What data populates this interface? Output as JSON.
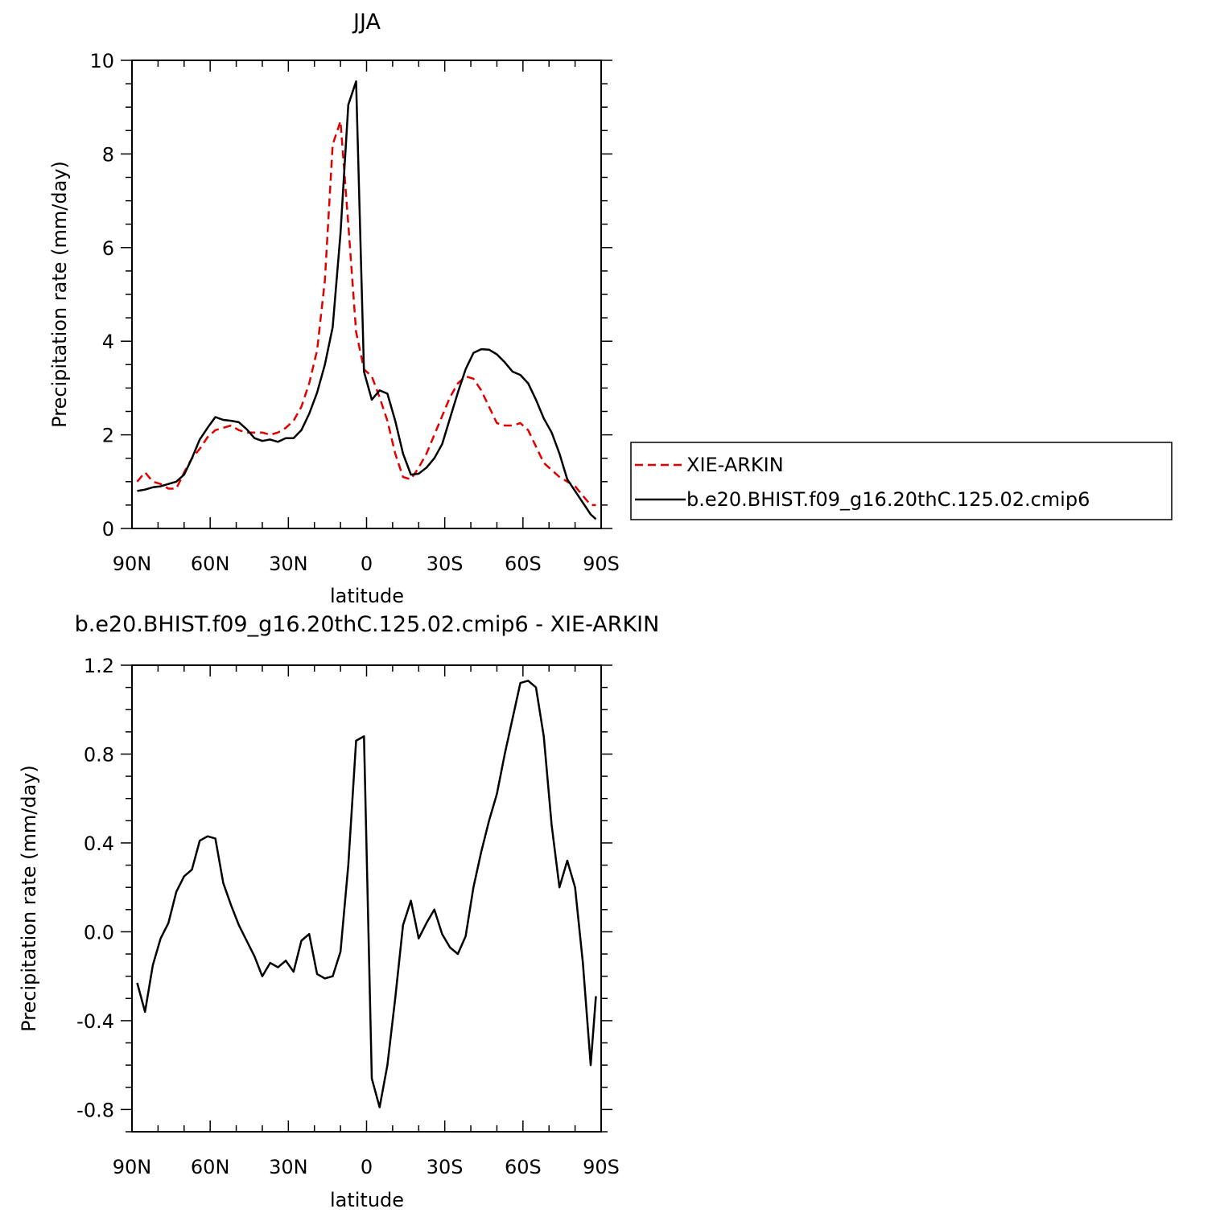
{
  "chart_data": [
    {
      "type": "line",
      "title": "JJA",
      "xlabel": "latitude",
      "ylabel": "Precipitation rate (mm/day)",
      "xlim": [
        90,
        -90
      ],
      "ylim": [
        0,
        10
      ],
      "xticks": [
        {
          "value": 90,
          "label": "90N"
        },
        {
          "value": 60,
          "label": "60N"
        },
        {
          "value": 30,
          "label": "30N"
        },
        {
          "value": 0,
          "label": "0"
        },
        {
          "value": -30,
          "label": "30S"
        },
        {
          "value": -60,
          "label": "60S"
        },
        {
          "value": -90,
          "label": "90S"
        }
      ],
      "yticks": [
        0,
        2,
        4,
        6,
        8,
        10
      ],
      "legend_position": "right",
      "series": [
        {
          "name": "XIE-ARKIN",
          "color": "#e00000",
          "dash": "dashed",
          "x": [
            88,
            85,
            82,
            79,
            76,
            73,
            70,
            67,
            64,
            61,
            58,
            55,
            52,
            49,
            46,
            43,
            40,
            37,
            34,
            31,
            28,
            25,
            22,
            19,
            16,
            13,
            10,
            7,
            4,
            1,
            -2,
            -5,
            -8,
            -11,
            -14,
            -17,
            -20,
            -23,
            -26,
            -29,
            -32,
            -35,
            -38,
            -41,
            -44,
            -47,
            -50,
            -53,
            -56,
            -59,
            -62,
            -65,
            -68,
            -71,
            -74,
            -77,
            -80,
            -83,
            -86,
            -88
          ],
          "y": [
            1.0,
            1.2,
            1.0,
            0.95,
            0.85,
            0.85,
            1.2,
            1.5,
            1.7,
            1.95,
            2.1,
            2.15,
            2.2,
            2.1,
            2.05,
            2.05,
            2.05,
            2.0,
            2.05,
            2.15,
            2.3,
            2.6,
            3.1,
            3.8,
            5.3,
            8.2,
            8.7,
            6.5,
            4.2,
            3.4,
            3.25,
            2.8,
            2.3,
            1.6,
            1.1,
            1.05,
            1.3,
            1.6,
            2.0,
            2.4,
            2.8,
            3.1,
            3.25,
            3.2,
            2.95,
            2.6,
            2.25,
            2.2,
            2.2,
            2.25,
            2.1,
            1.75,
            1.4,
            1.25,
            1.1,
            1.0,
            0.9,
            0.7,
            0.5,
            0.5
          ]
        },
        {
          "name": "b.e20.BHIST.f09_g16.20thC.125.02.cmip6",
          "color": "#000000",
          "dash": "solid",
          "x": [
            88,
            85,
            82,
            79,
            76,
            73,
            70,
            67,
            64,
            61,
            58,
            55,
            52,
            49,
            46,
            43,
            40,
            37,
            34,
            31,
            28,
            25,
            22,
            19,
            16,
            13,
            10,
            7,
            4,
            1,
            -2,
            -5,
            -8,
            -11,
            -14,
            -17,
            -20,
            -23,
            -26,
            -29,
            -32,
            -35,
            -38,
            -41,
            -44,
            -47,
            -50,
            -53,
            -56,
            -59,
            -62,
            -65,
            -68,
            -71,
            -74,
            -77,
            -80,
            -83,
            -86,
            -88
          ],
          "y": [
            0.8,
            0.83,
            0.88,
            0.9,
            0.95,
            1.0,
            1.15,
            1.5,
            1.9,
            2.15,
            2.38,
            2.32,
            2.3,
            2.27,
            2.12,
            1.93,
            1.87,
            1.9,
            1.85,
            1.93,
            1.93,
            2.1,
            2.45,
            2.9,
            3.5,
            4.3,
            6.3,
            9.05,
            9.55,
            3.35,
            2.75,
            2.95,
            2.88,
            2.3,
            1.6,
            1.15,
            1.17,
            1.3,
            1.5,
            1.8,
            2.35,
            2.9,
            3.4,
            3.75,
            3.83,
            3.82,
            3.72,
            3.55,
            3.35,
            3.28,
            3.1,
            2.75,
            2.35,
            2.05,
            1.6,
            1.05,
            0.8,
            0.55,
            0.3,
            0.2
          ]
        }
      ]
    },
    {
      "type": "line",
      "title": "b.e20.BHIST.f09_g16.20thC.125.02.cmip6 - XIE-ARKIN",
      "xlabel": "latitude",
      "ylabel": "Precipitation rate (mm/day)",
      "xlim": [
        90,
        -90
      ],
      "ylim": [
        -0.9,
        1.2
      ],
      "xticks": [
        {
          "value": 90,
          "label": "90N"
        },
        {
          "value": 60,
          "label": "60N"
        },
        {
          "value": 30,
          "label": "30N"
        },
        {
          "value": 0,
          "label": "0"
        },
        {
          "value": -30,
          "label": "30S"
        },
        {
          "value": -60,
          "label": "60S"
        },
        {
          "value": -90,
          "label": "90S"
        }
      ],
      "yticks": [
        {
          "value": -0.8,
          "label": "-0.8"
        },
        {
          "value": -0.4,
          "label": "-0.4"
        },
        {
          "value": 0.0,
          "label": "0.0"
        },
        {
          "value": 0.4,
          "label": "0.4"
        },
        {
          "value": 0.8,
          "label": "0.8"
        },
        {
          "value": 1.2,
          "label": "1.2"
        }
      ],
      "series": [
        {
          "color": "#000000",
          "dash": "solid",
          "x": [
            88,
            85,
            82,
            79,
            76,
            73,
            70,
            67,
            64,
            61,
            58,
            55,
            52,
            49,
            46,
            43,
            40,
            37,
            34,
            31,
            28,
            25,
            22,
            19,
            16,
            13,
            10,
            7,
            4,
            1,
            -2,
            -5,
            -8,
            -11,
            -14,
            -17,
            -20,
            -23,
            -26,
            -29,
            -32,
            -35,
            -38,
            -41,
            -44,
            -47,
            -50,
            -53,
            -56,
            -59,
            -62,
            -65,
            -68,
            -71,
            -74,
            -77,
            -80,
            -83,
            -86,
            -88
          ],
          "y": [
            -0.23,
            -0.36,
            -0.15,
            -0.03,
            0.04,
            0.18,
            0.25,
            0.28,
            0.41,
            0.43,
            0.42,
            0.22,
            0.12,
            0.03,
            -0.04,
            -0.11,
            -0.2,
            -0.14,
            -0.16,
            -0.13,
            -0.18,
            -0.04,
            -0.01,
            -0.19,
            -0.21,
            -0.2,
            -0.09,
            0.3,
            0.86,
            0.88,
            -0.66,
            -0.79,
            -0.6,
            -0.3,
            0.03,
            0.14,
            -0.03,
            0.04,
            0.1,
            -0.01,
            -0.07,
            -0.1,
            -0.02,
            0.2,
            0.36,
            0.5,
            0.62,
            0.8,
            0.96,
            1.12,
            1.13,
            1.1,
            0.88,
            0.48,
            0.2,
            0.32,
            0.2,
            -0.14,
            -0.6,
            -0.29
          ]
        }
      ]
    }
  ]
}
